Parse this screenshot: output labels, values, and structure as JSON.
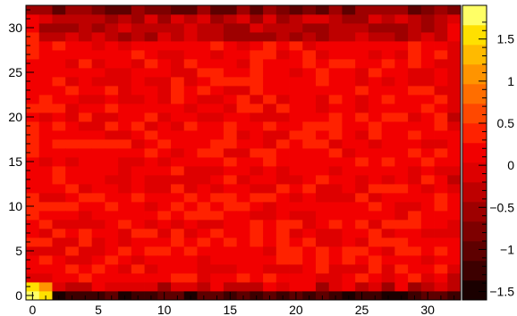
{
  "chart_data": {
    "type": "heatmap",
    "title": "",
    "xlabel": "",
    "ylabel": "",
    "xlim": [
      -0.5,
      32.5
    ],
    "ylim": [
      -0.5,
      32.5
    ],
    "zlim": [
      -1.6,
      1.9
    ],
    "x_ticks": [
      0,
      5,
      10,
      15,
      20,
      25,
      30
    ],
    "y_ticks": [
      0,
      5,
      10,
      15,
      20,
      25,
      30
    ],
    "x_tick_labels": [
      "0",
      "5",
      "10",
      "15",
      "20",
      "25",
      "30"
    ],
    "y_tick_labels": [
      "0",
      "5",
      "10",
      "15",
      "20",
      "25",
      "30"
    ],
    "colorbar": {
      "ticks": [
        1.5,
        1,
        0.5,
        0,
        -0.5,
        -1,
        -1.5
      ],
      "tick_labels": [
        "1.5",
        "1",
        "0.5",
        "0",
        "−0.5",
        "−1",
        "−1.5"
      ]
    },
    "grid": false,
    "legend": "none",
    "colormap": [
      "#1a0000",
      "#3d0000",
      "#5e0000",
      "#7e0000",
      "#9e0000",
      "#be0000",
      "#de0000",
      "#f20000",
      "#ff2200",
      "#ff4800",
      "#ff6e00",
      "#ff9400",
      "#ffba00",
      "#ffe000",
      "#ffff66"
    ],
    "grid_n": 33,
    "grid_values_note": "",
    "region_values": {
      "corner_bottom_left": 1.9,
      "bottom_row": -1.2,
      "top_row": -0.8,
      "left_column": 0.2,
      "right_column": 0.0,
      "interior": 0.15
    }
  }
}
